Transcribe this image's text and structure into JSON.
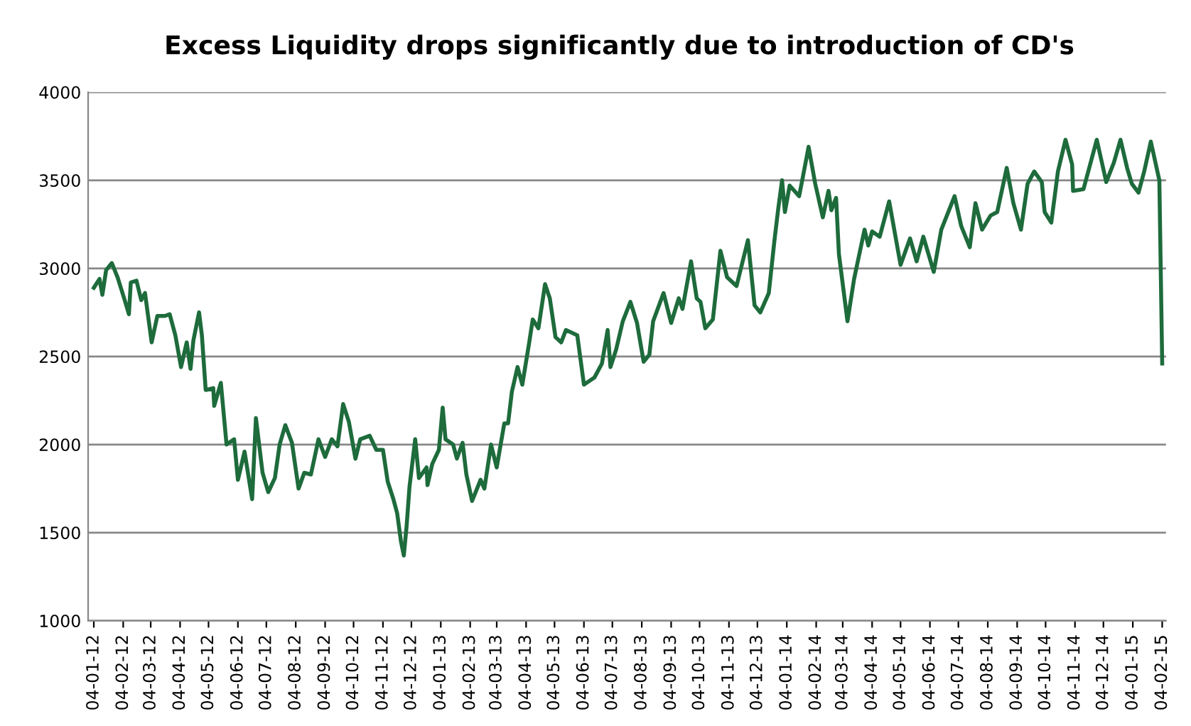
{
  "chart_data": {
    "type": "line",
    "title": "Excess Liquidity drops significantly due to introduction of CD's",
    "x": [
      "2012-01-04",
      "2012-01-10",
      "2012-01-13",
      "2012-01-17",
      "2012-01-23",
      "2012-01-29",
      "2012-02-05",
      "2012-02-10",
      "2012-02-12",
      "2012-02-18",
      "2012-02-23",
      "2012-02-27",
      "2012-03-05",
      "2012-03-11",
      "2012-03-19",
      "2012-03-24",
      "2012-03-30",
      "2012-04-05",
      "2012-04-11",
      "2012-04-15",
      "2012-04-18",
      "2012-04-24",
      "2012-04-27",
      "2012-05-01",
      "2012-05-09",
      "2012-05-10",
      "2012-05-17",
      "2012-05-23",
      "2012-05-31",
      "2012-06-04",
      "2012-06-11",
      "2012-06-19",
      "2012-06-23",
      "2012-06-30",
      "2012-07-06",
      "2012-07-13",
      "2012-07-18",
      "2012-07-24",
      "2012-07-31",
      "2012-08-07",
      "2012-08-13",
      "2012-08-20",
      "2012-08-28",
      "2012-09-04",
      "2012-09-11",
      "2012-09-17",
      "2012-09-23",
      "2012-09-29",
      "2012-10-06",
      "2012-10-11",
      "2012-10-21",
      "2012-10-28",
      "2012-11-04",
      "2012-11-09",
      "2012-11-15",
      "2012-11-19",
      "2012-11-23",
      "2012-11-26",
      "2012-11-29",
      "2012-12-02",
      "2012-12-08",
      "2012-12-12",
      "2012-12-20",
      "2012-12-21",
      "2012-12-26",
      "2013-01-02",
      "2013-01-06",
      "2013-01-09",
      "2013-01-17",
      "2013-01-21",
      "2013-01-27",
      "2013-01-31",
      "2013-02-06",
      "2013-02-15",
      "2013-02-19",
      "2013-02-26",
      "2013-03-04",
      "2013-03-12",
      "2013-03-16",
      "2013-03-20",
      "2013-03-26",
      "2013-03-31",
      "2013-04-07",
      "2013-04-11",
      "2013-04-17",
      "2013-04-24",
      "2013-04-29",
      "2013-05-05",
      "2013-05-11",
      "2013-05-16",
      "2013-05-28",
      "2013-06-04",
      "2013-06-15",
      "2013-06-23",
      "2013-06-29",
      "2013-07-02",
      "2013-07-08",
      "2013-07-15",
      "2013-07-23",
      "2013-07-30",
      "2013-08-06",
      "2013-08-12",
      "2013-08-16",
      "2013-08-27",
      "2013-09-04",
      "2013-09-12",
      "2013-09-16",
      "2013-09-25",
      "2013-10-01",
      "2013-10-05",
      "2013-10-10",
      "2013-10-18",
      "2013-10-26",
      "2013-11-02",
      "2013-11-12",
      "2013-11-24",
      "2013-12-01",
      "2013-12-07",
      "2013-12-16",
      "2013-12-22",
      "2013-12-26",
      "2013-12-30",
      "2014-01-02",
      "2014-01-07",
      "2014-01-17",
      "2014-01-21",
      "2014-01-27",
      "2014-02-03",
      "2014-02-11",
      "2014-02-17",
      "2014-02-20",
      "2014-02-25",
      "2014-02-28",
      "2014-03-09",
      "2014-03-16",
      "2014-03-27",
      "2014-03-31",
      "2014-04-04",
      "2014-04-12",
      "2014-04-22",
      "2014-05-04",
      "2014-05-14",
      "2014-05-21",
      "2014-05-28",
      "2014-06-08",
      "2014-06-16",
      "2014-06-30",
      "2014-07-07",
      "2014-07-16",
      "2014-07-22",
      "2014-07-29",
      "2014-08-07",
      "2014-08-14",
      "2014-08-24",
      "2014-08-31",
      "2014-09-08",
      "2014-09-15",
      "2014-09-22",
      "2014-09-30",
      "2014-10-03",
      "2014-10-10",
      "2014-10-17",
      "2014-10-25",
      "2014-11-01",
      "2014-11-02",
      "2014-11-13",
      "2014-11-27",
      "2014-12-02",
      "2014-12-07",
      "2014-12-15",
      "2014-12-22",
      "2014-12-29",
      "2015-01-03",
      "2015-01-10",
      "2015-01-16",
      "2015-01-23",
      "2015-02-01",
      "2015-02-04"
    ],
    "series": [
      {
        "color": "#1e6b3c",
        "values": [
          2890,
          2940,
          2850,
          2990,
          3030,
          2950,
          2830,
          2740,
          2920,
          2930,
          2820,
          2860,
          2580,
          2730,
          2730,
          2740,
          2620,
          2440,
          2580,
          2430,
          2590,
          2750,
          2620,
          2310,
          2320,
          2220,
          2350,
          2000,
          2030,
          1800,
          1960,
          1690,
          2150,
          1840,
          1730,
          1810,
          2000,
          2110,
          2010,
          1750,
          1840,
          1830,
          2030,
          1930,
          2030,
          1990,
          2230,
          2130,
          1920,
          2030,
          2050,
          1970,
          1970,
          1790,
          1690,
          1610,
          1450,
          1370,
          1540,
          1760,
          2030,
          1810,
          1870,
          1770,
          1890,
          1970,
          2210,
          2030,
          2000,
          1920,
          2010,
          1830,
          1680,
          1800,
          1750,
          2000,
          1870,
          2120,
          2120,
          2300,
          2440,
          2340,
          2570,
          2710,
          2660,
          2910,
          2830,
          2610,
          2580,
          2650,
          2620,
          2340,
          2380,
          2460,
          2650,
          2440,
          2540,
          2700,
          2810,
          2690,
          2470,
          2510,
          2700,
          2860,
          2690,
          2830,
          2770,
          3040,
          2830,
          2810,
          2660,
          2710,
          3100,
          2950,
          2900,
          3160,
          2790,
          2750,
          2860,
          3160,
          3340,
          3500,
          3320,
          3470,
          3410,
          3520,
          3690,
          3480,
          3290,
          3440,
          3330,
          3400,
          3080,
          2700,
          2940,
          3220,
          3130,
          3210,
          3180,
          3380,
          3020,
          3170,
          3040,
          3180,
          2980,
          3220,
          3410,
          3240,
          3120,
          3370,
          3220,
          3300,
          3320,
          3570,
          3370,
          3220,
          3480,
          3550,
          3490,
          3320,
          3260,
          3550,
          3730,
          3590,
          3440,
          3450,
          3730,
          3610,
          3490,
          3600,
          3730,
          3570,
          3480,
          3430,
          3550,
          3720,
          3500,
          2460
        ]
      }
    ],
    "ylim": [
      1000,
      4000
    ],
    "yticks": [
      1000,
      1500,
      2000,
      2500,
      3000,
      3500,
      4000
    ],
    "xlim": [
      "2011-12-29",
      "2015-02-08"
    ],
    "xticks": [
      {
        "value": "2012-01-04",
        "label": "04-01-12"
      },
      {
        "value": "2012-02-04",
        "label": "04-02-12"
      },
      {
        "value": "2012-03-04",
        "label": "04-03-12"
      },
      {
        "value": "2012-04-04",
        "label": "04-04-12"
      },
      {
        "value": "2012-05-04",
        "label": "04-05-12"
      },
      {
        "value": "2012-06-04",
        "label": "04-06-12"
      },
      {
        "value": "2012-07-04",
        "label": "04-07-12"
      },
      {
        "value": "2012-08-04",
        "label": "04-08-12"
      },
      {
        "value": "2012-09-04",
        "label": "04-09-12"
      },
      {
        "value": "2012-10-04",
        "label": "04-10-12"
      },
      {
        "value": "2012-11-04",
        "label": "04-11-12"
      },
      {
        "value": "2012-12-04",
        "label": "04-12-12"
      },
      {
        "value": "2013-01-04",
        "label": "04-01-13"
      },
      {
        "value": "2013-02-04",
        "label": "04-02-13"
      },
      {
        "value": "2013-03-04",
        "label": "04-03-13"
      },
      {
        "value": "2013-04-04",
        "label": "04-04-13"
      },
      {
        "value": "2013-05-04",
        "label": "04-05-13"
      },
      {
        "value": "2013-06-04",
        "label": "04-06-13"
      },
      {
        "value": "2013-07-04",
        "label": "04-07-13"
      },
      {
        "value": "2013-08-04",
        "label": "04-08-13"
      },
      {
        "value": "2013-09-04",
        "label": "04-09-13"
      },
      {
        "value": "2013-10-04",
        "label": "04-10-13"
      },
      {
        "value": "2013-11-04",
        "label": "04-11-13"
      },
      {
        "value": "2013-12-04",
        "label": "04-12-13"
      },
      {
        "value": "2014-01-04",
        "label": "04-01-14"
      },
      {
        "value": "2014-02-04",
        "label": "04-02-14"
      },
      {
        "value": "2014-03-04",
        "label": "04-03-14"
      },
      {
        "value": "2014-04-04",
        "label": "04-04-14"
      },
      {
        "value": "2014-05-04",
        "label": "04-05-14"
      },
      {
        "value": "2014-06-04",
        "label": "04-06-14"
      },
      {
        "value": "2014-07-04",
        "label": "04-07-14"
      },
      {
        "value": "2014-08-04",
        "label": "04-08-14"
      },
      {
        "value": "2014-09-04",
        "label": "04-09-14"
      },
      {
        "value": "2014-10-04",
        "label": "04-10-14"
      },
      {
        "value": "2014-11-04",
        "label": "04-11-14"
      },
      {
        "value": "2014-12-04",
        "label": "04-12-14"
      },
      {
        "value": "2015-01-04",
        "label": "04-01-15"
      },
      {
        "value": "2015-02-04",
        "label": "04-02-15"
      }
    ],
    "grid": "y",
    "marker": "none",
    "line_style": "solid"
  }
}
